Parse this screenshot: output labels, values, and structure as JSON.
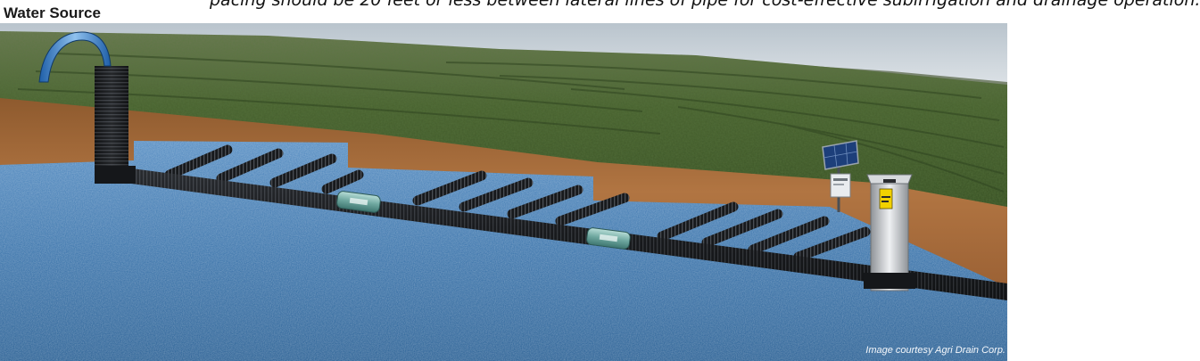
{
  "header": {
    "caption": "pacing should be 20 feet or less between lateral lines of pipe for cost-effective subirrigation and drainage operation."
  },
  "labels": {
    "water_source": "Water Source",
    "credit": "Image courtesy Agri Drain Corp."
  },
  "icons": [
    "solar-panel-icon",
    "water-control-structure-icon",
    "inline-valve-icon"
  ],
  "colors": {
    "water": "#3f77ad",
    "soil": "#a4683a",
    "crop": "#4b6530",
    "pipe": "#17191c",
    "structure": "#c9ccd0",
    "sky": "#d5dce2"
  }
}
